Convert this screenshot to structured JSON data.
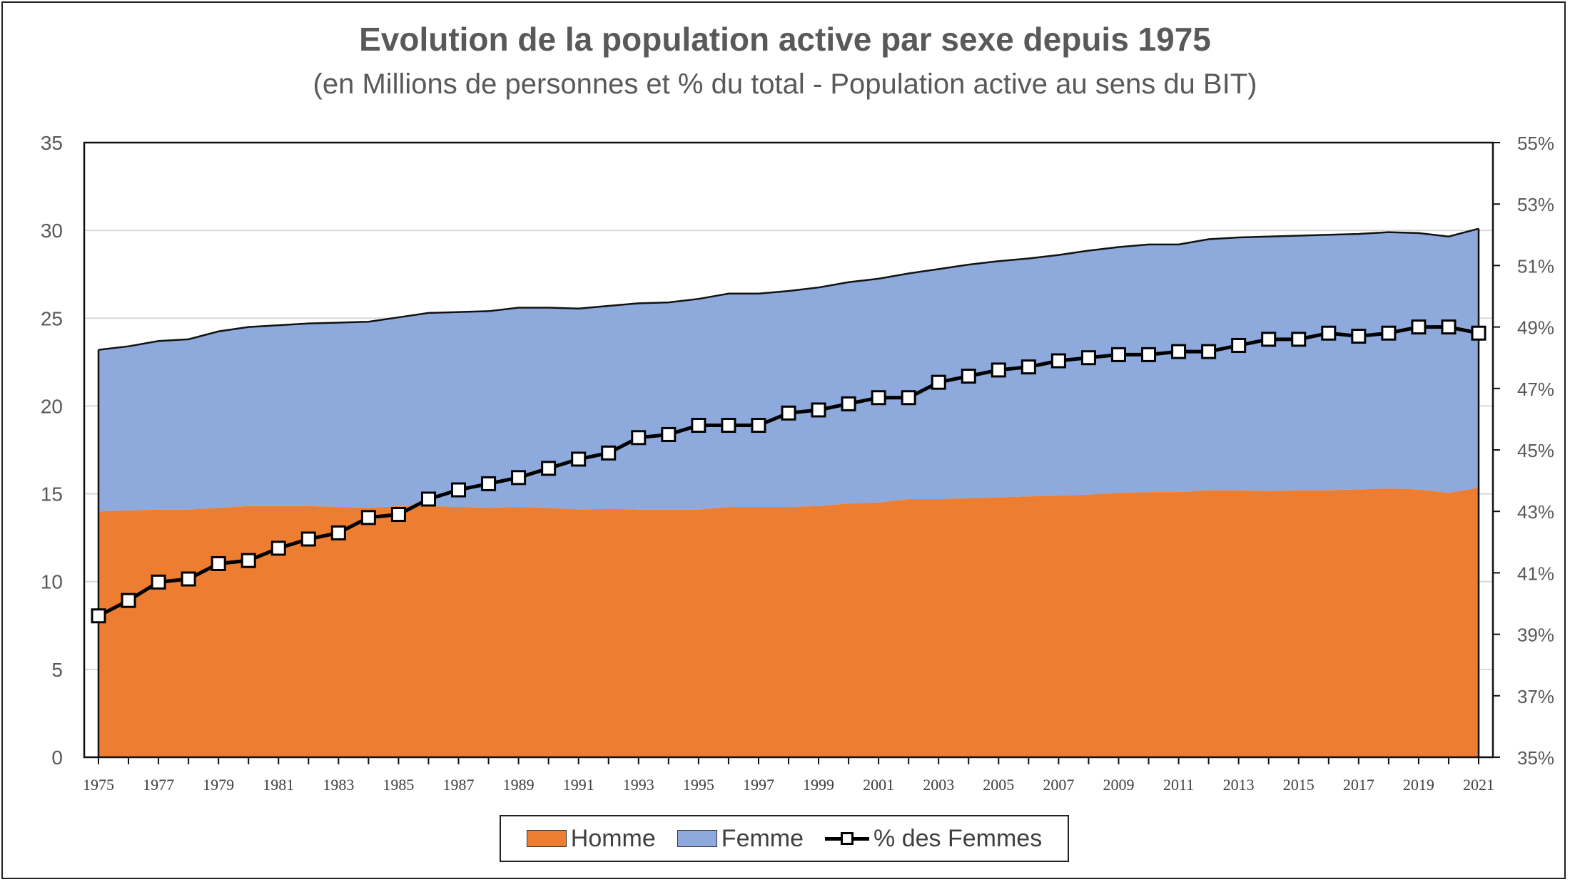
{
  "chart_data": {
    "type": "area",
    "title": "Evolution de la population active par sexe depuis 1975",
    "subtitle": "(en Millions de personnes et % du total - Population active au sens du BIT)",
    "x": [
      1975,
      1976,
      1977,
      1978,
      1979,
      1980,
      1981,
      1982,
      1983,
      1984,
      1985,
      1986,
      1987,
      1988,
      1989,
      1990,
      1991,
      1992,
      1993,
      1994,
      1995,
      1996,
      1997,
      1998,
      1999,
      2000,
      2001,
      2002,
      2003,
      2004,
      2005,
      2006,
      2007,
      2008,
      2009,
      2010,
      2011,
      2012,
      2013,
      2014,
      2015,
      2016,
      2017,
      2018,
      2019,
      2020,
      2021
    ],
    "x_tick_labels": [
      "1975",
      "1977",
      "1979",
      "1981",
      "1983",
      "1985",
      "1987",
      "1989",
      "1991",
      "1993",
      "1995",
      "1997",
      "1999",
      "2001",
      "2003",
      "2005",
      "2007",
      "2009",
      "2011",
      "2013",
      "2015",
      "2017",
      "2019",
      "2021"
    ],
    "series": [
      {
        "name": "Homme",
        "type": "area",
        "axis": "left",
        "color": "#ED7D31",
        "values": [
          14.0,
          14.05,
          14.1,
          14.1,
          14.2,
          14.3,
          14.3,
          14.3,
          14.25,
          14.2,
          14.3,
          14.3,
          14.25,
          14.2,
          14.25,
          14.2,
          14.1,
          14.15,
          14.1,
          14.1,
          14.1,
          14.25,
          14.25,
          14.25,
          14.3,
          14.45,
          14.5,
          14.7,
          14.7,
          14.75,
          14.8,
          14.85,
          14.9,
          14.95,
          15.05,
          15.1,
          15.1,
          15.2,
          15.2,
          15.15,
          15.2,
          15.2,
          15.25,
          15.3,
          15.25,
          15.05,
          15.35
        ]
      },
      {
        "name": "Femme",
        "type": "stacked-area",
        "axis": "left",
        "color": "#8EA9DB",
        "values": [
          9.2,
          9.35,
          9.6,
          9.7,
          10.05,
          10.2,
          10.3,
          10.4,
          10.5,
          10.6,
          10.75,
          11.0,
          11.1,
          11.2,
          11.35,
          11.4,
          11.45,
          11.55,
          11.75,
          11.8,
          12.0,
          12.15,
          12.15,
          12.3,
          12.45,
          12.6,
          12.75,
          12.85,
          13.1,
          13.3,
          13.45,
          13.55,
          13.7,
          13.9,
          14.0,
          14.1,
          14.1,
          14.3,
          14.4,
          14.5,
          14.5,
          14.55,
          14.55,
          14.6,
          14.6,
          14.6,
          14.75
        ]
      },
      {
        "name": "% des Femmes",
        "type": "line",
        "axis": "right",
        "color": "#000000",
        "marker": "square",
        "values": [
          39.6,
          40.1,
          40.7,
          40.8,
          41.3,
          41.4,
          41.8,
          42.1,
          42.3,
          42.8,
          42.9,
          43.4,
          43.7,
          43.9,
          44.1,
          44.4,
          44.7,
          44.9,
          45.4,
          45.5,
          45.8,
          45.8,
          45.8,
          46.2,
          46.3,
          46.5,
          46.7,
          46.7,
          47.2,
          47.4,
          47.6,
          47.7,
          47.9,
          48.0,
          48.1,
          48.1,
          48.2,
          48.2,
          48.4,
          48.6,
          48.6,
          48.8,
          48.7,
          48.8,
          49.0,
          49.0,
          48.8
        ]
      }
    ],
    "y_left": {
      "min": 0,
      "max": 35,
      "step": 5,
      "ticks": [
        "0",
        "5",
        "10",
        "15",
        "20",
        "25",
        "30",
        "35"
      ]
    },
    "y_right": {
      "min": 35,
      "max": 55,
      "step": 2,
      "ticks": [
        "35%",
        "37%",
        "39%",
        "41%",
        "43%",
        "45%",
        "47%",
        "49%",
        "51%",
        "53%",
        "55%"
      ]
    },
    "grid": true,
    "legend": {
      "position": "bottom",
      "items": [
        "Homme",
        "Femme",
        "% des Femmes"
      ]
    }
  }
}
